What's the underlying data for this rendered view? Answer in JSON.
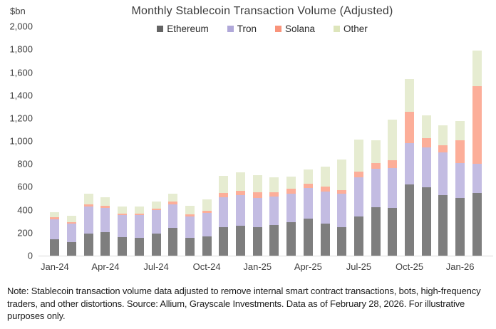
{
  "title": "Monthly Stablecoin Transaction Volume (Adjusted)",
  "y_axis_unit": "$bn",
  "footnote": "Note: Stablecoin transaction volume data adjusted to remove internal smart contract transactions, bots, high-frequency traders, and other distortions. Source: Allium, Grayscale Investments. Data as of February 28, 2026. For illustrative purposes only.",
  "chart_data": {
    "type": "bar",
    "stacked": true,
    "title": "Monthly Stablecoin Transaction Volume (Adjusted)",
    "ylabel": "$bn",
    "ylim": [
      0,
      2000
    ],
    "ytick_step": 200,
    "grid": false,
    "legend_position": "top",
    "categories": [
      "Jan-24",
      "Feb-24",
      "Mar-24",
      "Apr-24",
      "May-24",
      "Jun-24",
      "Jul-24",
      "Aug-24",
      "Sep-24",
      "Oct-24",
      "Nov-24",
      "Dec-24",
      "Jan-25",
      "Feb-25",
      "Mar-25",
      "Apr-25",
      "May-25",
      "Jun-25",
      "Jul-25",
      "Aug-25",
      "Sep-25",
      "Oct-25",
      "Nov-25",
      "Dec-25",
      "Jan-26",
      "Feb-26"
    ],
    "x_tick_labels": [
      "Jan-24",
      "Apr-24",
      "Jul-24",
      "Oct-24",
      "Jan-25",
      "Apr-25",
      "Jul-25",
      "Oct-25",
      "Jan-26"
    ],
    "x_tick_every": 3,
    "y_tick_labels": [
      "2,000",
      "1,800",
      "1,600",
      "1,400",
      "1,200",
      "1,000",
      "800",
      "600",
      "400",
      "200",
      "0"
    ],
    "series": [
      {
        "name": "Ethereum",
        "legend_color": "#646464",
        "bar_color": "#7e7e7e",
        "values": [
          140,
          120,
          195,
          205,
          160,
          155,
          195,
          240,
          155,
          165,
          250,
          260,
          250,
          270,
          290,
          325,
          277,
          250,
          340,
          425,
          417,
          620,
          595,
          530,
          505,
          545
        ]
      },
      {
        "name": "Tron",
        "legend_color": "#b0a8d9",
        "bar_color": "#c3bce2",
        "values": [
          180,
          160,
          235,
          210,
          195,
          197,
          200,
          210,
          190,
          210,
          262,
          267,
          255,
          245,
          250,
          265,
          280,
          290,
          345,
          335,
          345,
          360,
          350,
          370,
          305,
          260
        ]
      },
      {
        "name": "Solana",
        "legend_color": "#f9947b",
        "bar_color": "#fcae99",
        "values": [
          15,
          15,
          20,
          18,
          12,
          13,
          15,
          22,
          18,
          16,
          35,
          42,
          48,
          40,
          42,
          38,
          45,
          33,
          50,
          50,
          70,
          275,
          80,
          65,
          200,
          675
        ]
      },
      {
        "name": "Other",
        "legend_color": "#dde5bb",
        "bar_color": "#e6ecd1",
        "values": [
          45,
          55,
          90,
          77,
          63,
          65,
          65,
          68,
          70,
          98,
          148,
          156,
          152,
          130,
          110,
          122,
          173,
          265,
          278,
          200,
          357,
          290,
          198,
          175,
          165,
          310
        ]
      }
    ]
  }
}
